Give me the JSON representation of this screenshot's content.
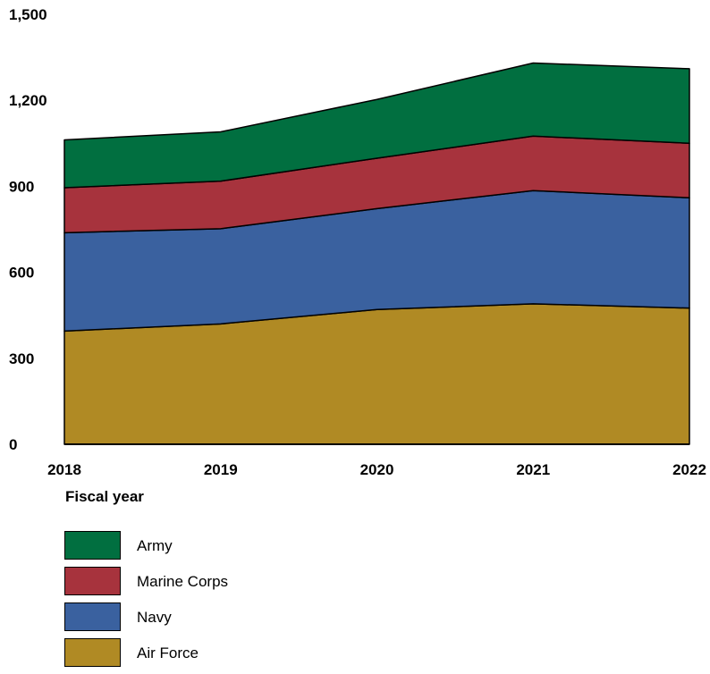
{
  "chart_data": {
    "type": "area",
    "stacked": true,
    "title": "",
    "xlabel": "Fiscal year",
    "ylabel": "",
    "x": [
      "2018",
      "2019",
      "2020",
      "2021",
      "2022"
    ],
    "ylim": [
      0,
      1500
    ],
    "yticks": [
      "0",
      "300",
      "600",
      "900",
      "1,200",
      "1,500"
    ],
    "ytick_values": [
      0,
      300,
      600,
      900,
      1200,
      1500
    ],
    "grid": false,
    "legend_position": "bottom-left",
    "series": [
      {
        "name": "Air Force",
        "color": "#b08a24",
        "values": [
          395,
          420,
          470,
          490,
          475
        ]
      },
      {
        "name": "Navy",
        "color": "#3a619f",
        "values": [
          343,
          332,
          352,
          395,
          385
        ]
      },
      {
        "name": "Marine Corps",
        "color": "#a7333d",
        "values": [
          157,
          166,
          176,
          190,
          190
        ]
      },
      {
        "name": "Army",
        "color": "#016f40",
        "values": [
          167,
          172,
          205,
          255,
          260
        ]
      }
    ]
  },
  "legend": {
    "items": [
      {
        "label": "Army",
        "color": "#016f40"
      },
      {
        "label": "Marine Corps",
        "color": "#a7333d"
      },
      {
        "label": "Navy",
        "color": "#3a619f"
      },
      {
        "label": "Air Force",
        "color": "#b08a24"
      }
    ]
  }
}
